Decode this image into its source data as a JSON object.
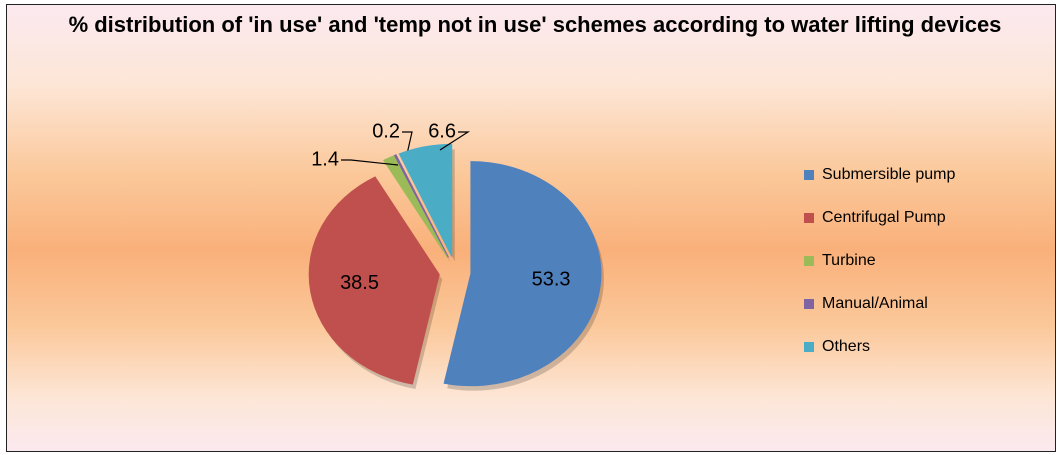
{
  "chart_data": {
    "type": "pie",
    "title": "% distribution of 'in use' and 'temp not in use' schemes according to water lifting devices",
    "categories": [
      "Submersible pump",
      "Centrifugal Pump",
      "Turbine",
      "Manual/Animal",
      "Others"
    ],
    "values": [
      53.3,
      38.5,
      1.4,
      0.2,
      6.6
    ],
    "colors": [
      "#4f81bd",
      "#c0504d",
      "#9bbb59",
      "#8064a2",
      "#4bacc6"
    ],
    "legend": "right"
  }
}
